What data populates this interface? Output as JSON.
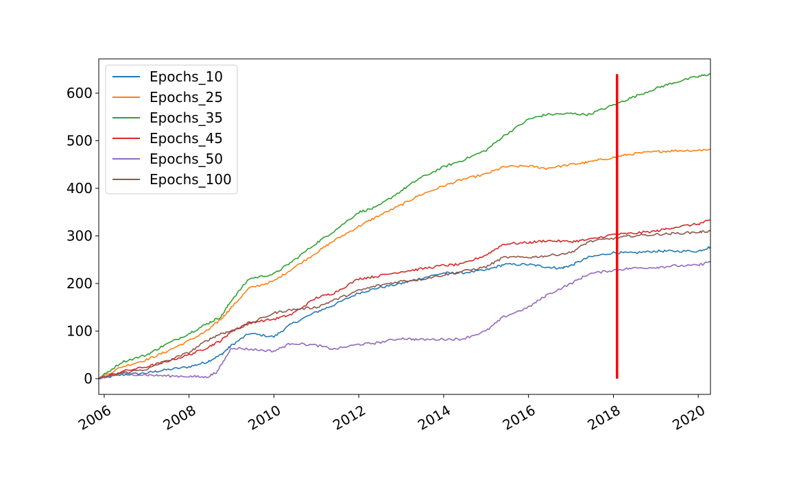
{
  "chart_data": {
    "type": "line",
    "title": "",
    "xlabel": "",
    "ylabel": "",
    "x_range": [
      "2005-11-15",
      "2020-04-15"
    ],
    "ylim": [
      -33,
      672
    ],
    "x_ticks": [
      "2006",
      "2008",
      "2010",
      "2012",
      "2014",
      "2016",
      "2018",
      "2020"
    ],
    "y_ticks": [
      0,
      100,
      200,
      300,
      400,
      500,
      600
    ],
    "grid": false,
    "legend_position": "upper-left",
    "vertical_marker": {
      "x": "2018-02-01",
      "y_range": [
        0,
        640
      ],
      "color": "#ff0000"
    },
    "series": [
      {
        "name": "Epochs_10",
        "color": "#1f77b4",
        "points": [
          [
            "2005-11-15",
            0
          ],
          [
            "2006-06-01",
            8
          ],
          [
            "2007-01-01",
            12
          ],
          [
            "2007-06-01",
            18
          ],
          [
            "2008-01-01",
            25
          ],
          [
            "2008-06-01",
            35
          ],
          [
            "2008-10-01",
            50
          ],
          [
            "2009-01-01",
            70
          ],
          [
            "2009-06-01",
            95
          ],
          [
            "2010-01-01",
            88
          ],
          [
            "2010-06-01",
            115
          ],
          [
            "2011-01-01",
            140
          ],
          [
            "2011-06-01",
            155
          ],
          [
            "2012-01-01",
            180
          ],
          [
            "2012-06-01",
            190
          ],
          [
            "2013-01-01",
            200
          ],
          [
            "2013-06-01",
            210
          ],
          [
            "2014-01-01",
            222
          ],
          [
            "2014-06-01",
            222
          ],
          [
            "2015-01-01",
            228
          ],
          [
            "2015-06-01",
            240
          ],
          [
            "2016-01-01",
            240
          ],
          [
            "2016-06-01",
            235
          ],
          [
            "2016-10-01",
            232
          ],
          [
            "2017-01-01",
            238
          ],
          [
            "2017-06-01",
            255
          ],
          [
            "2018-01-01",
            265
          ],
          [
            "2018-06-01",
            264
          ],
          [
            "2019-01-01",
            268
          ],
          [
            "2019-06-01",
            268
          ],
          [
            "2020-01-01",
            268
          ],
          [
            "2020-04-15",
            277
          ]
        ]
      },
      {
        "name": "Epochs_25",
        "color": "#ff7f0e",
        "points": [
          [
            "2005-11-15",
            0
          ],
          [
            "2006-06-01",
            25
          ],
          [
            "2007-01-01",
            40
          ],
          [
            "2007-06-01",
            55
          ],
          [
            "2008-01-01",
            80
          ],
          [
            "2008-06-01",
            100
          ],
          [
            "2008-10-01",
            125
          ],
          [
            "2009-01-01",
            150
          ],
          [
            "2009-06-01",
            190
          ],
          [
            "2010-01-01",
            205
          ],
          [
            "2010-06-01",
            230
          ],
          [
            "2011-01-01",
            265
          ],
          [
            "2011-06-01",
            290
          ],
          [
            "2012-01-01",
            320
          ],
          [
            "2012-06-01",
            340
          ],
          [
            "2013-01-01",
            365
          ],
          [
            "2013-06-01",
            385
          ],
          [
            "2014-01-01",
            405
          ],
          [
            "2014-06-01",
            418
          ],
          [
            "2015-01-01",
            430
          ],
          [
            "2015-06-01",
            445
          ],
          [
            "2016-01-01",
            447
          ],
          [
            "2016-06-01",
            442
          ],
          [
            "2017-01-01",
            450
          ],
          [
            "2017-06-01",
            455
          ],
          [
            "2018-01-01",
            465
          ],
          [
            "2018-06-01",
            472
          ],
          [
            "2019-01-01",
            477
          ],
          [
            "2019-06-01",
            479
          ],
          [
            "2020-01-01",
            480
          ],
          [
            "2020-04-15",
            482
          ]
        ]
      },
      {
        "name": "Epochs_35",
        "color": "#2ca02c",
        "points": [
          [
            "2005-11-15",
            0
          ],
          [
            "2006-06-01",
            35
          ],
          [
            "2007-01-01",
            50
          ],
          [
            "2007-06-01",
            70
          ],
          [
            "2008-01-01",
            95
          ],
          [
            "2008-06-01",
            115
          ],
          [
            "2008-10-01",
            130
          ],
          [
            "2009-01-01",
            165
          ],
          [
            "2009-06-01",
            210
          ],
          [
            "2010-01-01",
            220
          ],
          [
            "2010-06-01",
            245
          ],
          [
            "2011-01-01",
            285
          ],
          [
            "2011-06-01",
            310
          ],
          [
            "2012-01-01",
            350
          ],
          [
            "2012-06-01",
            360
          ],
          [
            "2013-01-01",
            395
          ],
          [
            "2013-06-01",
            420
          ],
          [
            "2014-01-01",
            445
          ],
          [
            "2014-06-01",
            458
          ],
          [
            "2015-01-01",
            480
          ],
          [
            "2015-06-01",
            510
          ],
          [
            "2016-01-01",
            545
          ],
          [
            "2016-06-01",
            555
          ],
          [
            "2017-01-01",
            557
          ],
          [
            "2017-06-01",
            555
          ],
          [
            "2018-01-01",
            575
          ],
          [
            "2018-06-01",
            590
          ],
          [
            "2019-01-01",
            610
          ],
          [
            "2019-06-01",
            622
          ],
          [
            "2020-01-01",
            635
          ],
          [
            "2020-04-15",
            640
          ]
        ]
      },
      {
        "name": "Epochs_45",
        "color": "#d62728",
        "points": [
          [
            "2005-11-15",
            0
          ],
          [
            "2006-06-01",
            15
          ],
          [
            "2007-01-01",
            25
          ],
          [
            "2007-06-01",
            35
          ],
          [
            "2008-01-01",
            50
          ],
          [
            "2008-06-01",
            65
          ],
          [
            "2008-10-01",
            80
          ],
          [
            "2009-01-01",
            100
          ],
          [
            "2009-06-01",
            118
          ],
          [
            "2010-01-01",
            125
          ],
          [
            "2010-06-01",
            135
          ],
          [
            "2011-01-01",
            170
          ],
          [
            "2011-06-01",
            180
          ],
          [
            "2012-01-01",
            210
          ],
          [
            "2012-06-01",
            215
          ],
          [
            "2013-01-01",
            225
          ],
          [
            "2013-06-01",
            230
          ],
          [
            "2014-01-01",
            238
          ],
          [
            "2014-06-01",
            240
          ],
          [
            "2015-01-01",
            260
          ],
          [
            "2015-06-01",
            283
          ],
          [
            "2016-01-01",
            286
          ],
          [
            "2016-06-01",
            290
          ],
          [
            "2017-01-01",
            288
          ],
          [
            "2017-06-01",
            292
          ],
          [
            "2018-01-01",
            303
          ],
          [
            "2018-06-01",
            305
          ],
          [
            "2019-01-01",
            310
          ],
          [
            "2019-06-01",
            318
          ],
          [
            "2020-01-01",
            325
          ],
          [
            "2020-04-15",
            333
          ]
        ]
      },
      {
        "name": "Epochs_50",
        "color": "#9467bd",
        "points": [
          [
            "2005-11-15",
            0
          ],
          [
            "2006-06-01",
            10
          ],
          [
            "2007-01-01",
            8
          ],
          [
            "2007-06-01",
            6
          ],
          [
            "2008-01-01",
            5
          ],
          [
            "2008-06-01",
            3
          ],
          [
            "2008-09-01",
            15
          ],
          [
            "2009-01-01",
            65
          ],
          [
            "2009-06-01",
            62
          ],
          [
            "2010-01-01",
            58
          ],
          [
            "2010-06-01",
            75
          ],
          [
            "2011-01-01",
            70
          ],
          [
            "2011-06-01",
            62
          ],
          [
            "2012-01-01",
            72
          ],
          [
            "2012-06-01",
            75
          ],
          [
            "2013-01-01",
            85
          ],
          [
            "2013-06-01",
            82
          ],
          [
            "2014-01-01",
            83
          ],
          [
            "2014-06-01",
            83
          ],
          [
            "2015-01-01",
            100
          ],
          [
            "2015-06-01",
            130
          ],
          [
            "2016-01-01",
            150
          ],
          [
            "2016-06-01",
            175
          ],
          [
            "2017-01-01",
            200
          ],
          [
            "2017-06-01",
            220
          ],
          [
            "2018-01-01",
            228
          ],
          [
            "2018-06-01",
            232
          ],
          [
            "2019-01-01",
            234
          ],
          [
            "2019-06-01",
            237
          ],
          [
            "2020-01-01",
            238
          ],
          [
            "2020-04-15",
            247
          ]
        ]
      },
      {
        "name": "Epochs_100",
        "color": "#8c564b",
        "points": [
          [
            "2005-11-15",
            0
          ],
          [
            "2006-06-01",
            12
          ],
          [
            "2007-01-01",
            20
          ],
          [
            "2007-06-01",
            35
          ],
          [
            "2008-01-01",
            55
          ],
          [
            "2008-06-01",
            80
          ],
          [
            "2008-10-01",
            95
          ],
          [
            "2009-01-01",
            100
          ],
          [
            "2009-06-01",
            115
          ],
          [
            "2010-01-01",
            138
          ],
          [
            "2010-06-01",
            145
          ],
          [
            "2011-01-01",
            150
          ],
          [
            "2011-06-01",
            165
          ],
          [
            "2012-01-01",
            185
          ],
          [
            "2012-06-01",
            195
          ],
          [
            "2013-01-01",
            205
          ],
          [
            "2013-06-01",
            208
          ],
          [
            "2014-01-01",
            218
          ],
          [
            "2014-06-01",
            225
          ],
          [
            "2015-01-01",
            235
          ],
          [
            "2015-06-01",
            255
          ],
          [
            "2016-01-01",
            255
          ],
          [
            "2016-06-01",
            258
          ],
          [
            "2017-01-01",
            265
          ],
          [
            "2017-06-01",
            288
          ],
          [
            "2018-01-01",
            295
          ],
          [
            "2018-06-01",
            300
          ],
          [
            "2019-01-01",
            303
          ],
          [
            "2019-06-01",
            305
          ],
          [
            "2020-01-01",
            308
          ],
          [
            "2020-04-15",
            310
          ]
        ]
      }
    ]
  }
}
